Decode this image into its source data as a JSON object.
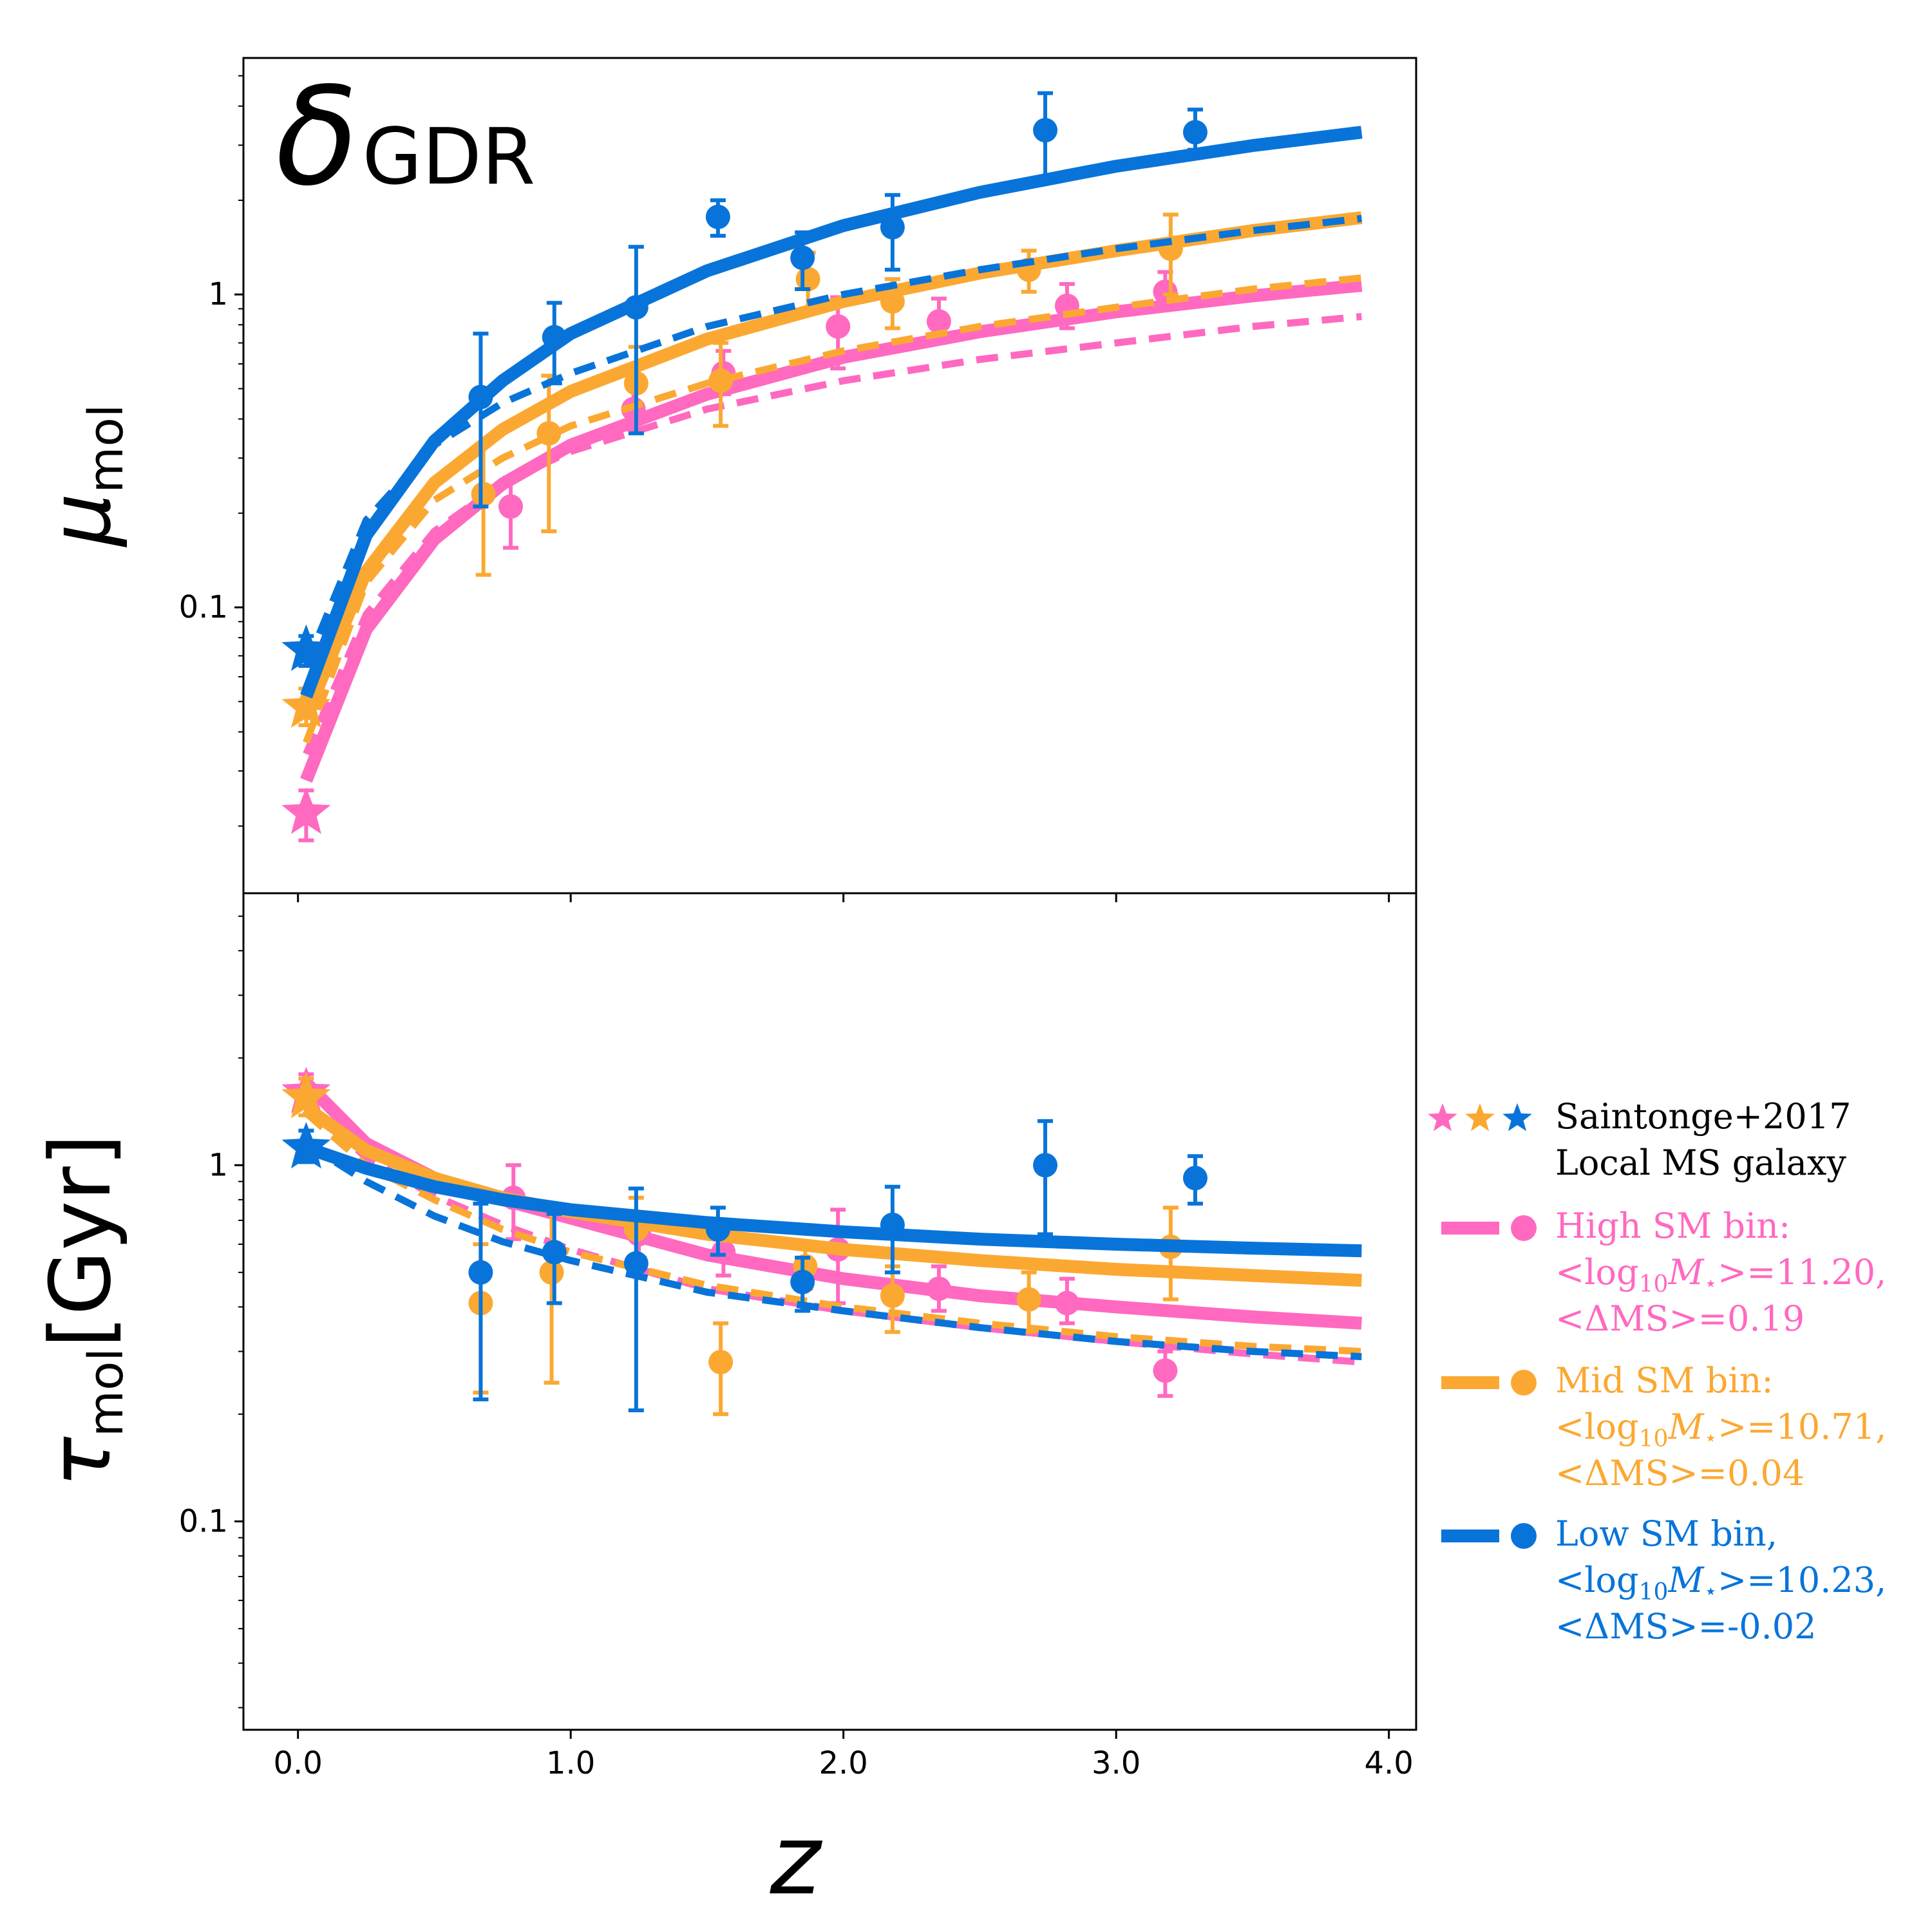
{
  "colors": {
    "high": "#ff69c0",
    "mid": "#fba832",
    "low": "#0874d9",
    "axis": "#000000"
  },
  "chart_data": [
    {
      "type": "scatter",
      "panel": "top",
      "title": "δ",
      "title_sub": "GDR",
      "ylabel": "μ",
      "ylabel_sub": "mol",
      "yscale": "log",
      "ylim": [
        0.0122,
        5.7
      ],
      "xlim": [
        -0.2,
        4.1
      ],
      "yticks": [
        {
          "value": 1,
          "label": "1"
        },
        {
          "value": 0.1,
          "label": "0.1"
        }
      ],
      "xticks": [
        0,
        1,
        2,
        3,
        4
      ],
      "series": [
        {
          "name": "High SM bin",
          "color_key": "high",
          "stars": [
            {
              "x": 0.03,
              "y": 0.022,
              "err_lo": 0.018,
              "err_hi": 0.026
            }
          ],
          "points": [
            {
              "x": 0.78,
              "y": 0.21,
              "err_lo": 0.155,
              "err_hi": 0.26
            },
            {
              "x": 1.23,
              "y": 0.43,
              "err_lo": 0.37,
              "err_hi": 0.5
            },
            {
              "x": 1.56,
              "y": 0.56,
              "err_lo": 0.48,
              "err_hi": 0.66
            },
            {
              "x": 1.98,
              "y": 0.79,
              "err_lo": 0.58,
              "err_hi": 0.98
            },
            {
              "x": 2.35,
              "y": 0.82,
              "err_lo": 0.7,
              "err_hi": 0.97
            },
            {
              "x": 2.82,
              "y": 0.92,
              "err_lo": 0.78,
              "err_hi": 1.08
            },
            {
              "x": 3.18,
              "y": 1.02,
              "err_lo": 0.9,
              "err_hi": 1.18
            }
          ],
          "solid": {
            "x": [
              0.03,
              0.25,
              0.5,
              0.75,
              1.0,
              1.5,
              2.0,
              2.5,
              3.0,
              3.5,
              3.9
            ],
            "y": [
              0.028,
              0.085,
              0.165,
              0.248,
              0.33,
              0.48,
              0.63,
              0.76,
              0.88,
              0.99,
              1.07
            ]
          },
          "dashed": {
            "x": [
              0.03,
              0.25,
              0.5,
              0.75,
              1.0,
              1.5,
              2.0,
              2.5,
              3.0,
              3.5,
              3.9
            ],
            "y": [
              0.034,
              0.095,
              0.175,
              0.25,
              0.315,
              0.43,
              0.53,
              0.62,
              0.7,
              0.79,
              0.85
            ]
          }
        },
        {
          "name": "Mid SM bin",
          "color_key": "mid",
          "stars": [
            {
              "x": 0.03,
              "y": 0.048,
              "err_lo": 0.042,
              "err_hi": 0.055
            }
          ],
          "points": [
            {
              "x": 0.68,
              "y": 0.23,
              "err_lo": 0.127,
              "err_hi": 0.33
            },
            {
              "x": 0.92,
              "y": 0.36,
              "err_lo": 0.175,
              "err_hi": 0.55
            },
            {
              "x": 1.24,
              "y": 0.52,
              "err_lo": 0.36,
              "err_hi": 0.68
            },
            {
              "x": 1.55,
              "y": 0.53,
              "err_lo": 0.38,
              "err_hi": 0.7
            },
            {
              "x": 1.87,
              "y": 1.12,
              "err_lo": 0.88,
              "err_hi": 1.36
            },
            {
              "x": 2.18,
              "y": 0.95,
              "err_lo": 0.78,
              "err_hi": 1.12
            },
            {
              "x": 2.68,
              "y": 1.2,
              "err_lo": 1.02,
              "err_hi": 1.38
            },
            {
              "x": 3.2,
              "y": 1.4,
              "err_lo": 1.0,
              "err_hi": 1.8
            }
          ],
          "solid": {
            "x": [
              0.03,
              0.25,
              0.5,
              0.75,
              1.0,
              1.5,
              2.0,
              2.5,
              3.0,
              3.5,
              3.9
            ],
            "y": [
              0.045,
              0.13,
              0.25,
              0.37,
              0.49,
              0.72,
              0.95,
              1.17,
              1.38,
              1.6,
              1.76
            ]
          },
          "dashed": {
            "x": [
              0.03,
              0.25,
              0.5,
              0.75,
              1.0,
              1.5,
              2.0,
              2.5,
              3.0,
              3.5,
              3.9
            ],
            "y": [
              0.037,
              0.12,
              0.22,
              0.3,
              0.38,
              0.52,
              0.66,
              0.79,
              0.91,
              1.04,
              1.13
            ]
          }
        },
        {
          "name": "Low SM bin",
          "color_key": "low",
          "stars": [
            {
              "x": 0.03,
              "y": 0.073,
              "err_lo": 0.065,
              "err_hi": 0.081
            }
          ],
          "points": [
            {
              "x": 0.67,
              "y": 0.47,
              "err_lo": 0.21,
              "err_hi": 0.75
            },
            {
              "x": 0.94,
              "y": 0.73,
              "err_lo": 0.52,
              "err_hi": 0.94
            },
            {
              "x": 1.24,
              "y": 0.91,
              "err_lo": 0.36,
              "err_hi": 1.42
            },
            {
              "x": 1.54,
              "y": 1.77,
              "err_lo": 1.54,
              "err_hi": 2.0
            },
            {
              "x": 1.85,
              "y": 1.31,
              "err_lo": 1.04,
              "err_hi": 1.58
            },
            {
              "x": 2.18,
              "y": 1.64,
              "err_lo": 1.2,
              "err_hi": 2.08
            },
            {
              "x": 2.74,
              "y": 3.35,
              "err_lo": 2.3,
              "err_hi": 4.4
            },
            {
              "x": 3.29,
              "y": 3.3,
              "err_lo": 2.9,
              "err_hi": 3.9
            }
          ],
          "solid": {
            "x": [
              0.03,
              0.25,
              0.5,
              0.75,
              1.0,
              1.5,
              2.0,
              2.5,
              3.0,
              3.5,
              3.9
            ],
            "y": [
              0.052,
              0.17,
              0.34,
              0.53,
              0.75,
              1.19,
              1.66,
              2.12,
              2.57,
              2.99,
              3.3
            ]
          },
          "dashed": {
            "x": [
              0.03,
              0.25,
              0.5,
              0.75,
              1.0,
              1.5,
              2.0,
              2.5,
              3.0,
              3.5,
              3.9
            ],
            "y": [
              0.065,
              0.19,
              0.33,
              0.45,
              0.56,
              0.79,
              1.0,
              1.2,
              1.4,
              1.6,
              1.75
            ]
          }
        }
      ]
    },
    {
      "type": "scatter",
      "panel": "bottom",
      "xlabel": "z",
      "ylabel": "τ",
      "ylabel_sub": "mol",
      "ylabel_unit": "[Gyr]",
      "yscale": "log",
      "ylim": [
        0.026,
        5.8
      ],
      "xlim": [
        -0.2,
        4.1
      ],
      "yticks": [
        {
          "value": 1,
          "label": "1"
        },
        {
          "value": 0.1,
          "label": "0.1"
        }
      ],
      "xticks": [
        {
          "value": 0,
          "label": "0.0"
        },
        {
          "value": 1,
          "label": "1.0"
        },
        {
          "value": 2,
          "label": "2.0"
        },
        {
          "value": 3,
          "label": "3.0"
        },
        {
          "value": 4,
          "label": "4.0"
        }
      ],
      "series": [
        {
          "name": "High SM bin",
          "color_key": "high",
          "stars": [
            {
              "x": 0.03,
              "y": 1.6,
              "err_lo": 1.45,
              "err_hi": 1.8
            }
          ],
          "points": [
            {
              "x": 0.79,
              "y": 0.81,
              "err_lo": 0.62,
              "err_hi": 1.0
            },
            {
              "x": 1.25,
              "y": 0.64,
              "err_lo": 0.55,
              "err_hi": 0.73
            },
            {
              "x": 1.56,
              "y": 0.57,
              "err_lo": 0.49,
              "err_hi": 0.65
            },
            {
              "x": 1.98,
              "y": 0.58,
              "err_lo": 0.41,
              "err_hi": 0.75
            },
            {
              "x": 2.35,
              "y": 0.45,
              "err_lo": 0.39,
              "err_hi": 0.52
            },
            {
              "x": 2.82,
              "y": 0.41,
              "err_lo": 0.36,
              "err_hi": 0.48
            },
            {
              "x": 3.18,
              "y": 0.265,
              "err_lo": 0.225,
              "err_hi": 0.3
            }
          ],
          "solid": {
            "x": [
              0.03,
              0.25,
              0.5,
              0.75,
              1.0,
              1.5,
              2.0,
              2.5,
              3.0,
              3.5,
              3.9
            ],
            "y": [
              1.7,
              1.15,
              0.92,
              0.8,
              0.71,
              0.56,
              0.48,
              0.43,
              0.4,
              0.375,
              0.36
            ]
          },
          "dashed": {
            "x": [
              0.03,
              0.25,
              0.5,
              0.75,
              1.0,
              1.5,
              2.0,
              2.5,
              3.0,
              3.5,
              3.9
            ],
            "y": [
              1.5,
              1.05,
              0.82,
              0.68,
              0.58,
              0.45,
              0.39,
              0.35,
              0.32,
              0.295,
              0.28
            ]
          }
        },
        {
          "name": "Mid SM bin",
          "color_key": "mid",
          "stars": [
            {
              "x": 0.03,
              "y": 1.55,
              "err_lo": 1.38,
              "err_hi": 1.75
            }
          ],
          "points": [
            {
              "x": 0.67,
              "y": 0.41,
              "err_lo": 0.23,
              "err_hi": 0.6
            },
            {
              "x": 0.93,
              "y": 0.5,
              "err_lo": 0.245,
              "err_hi": 0.75
            },
            {
              "x": 1.24,
              "y": 0.66,
              "err_lo": 0.51,
              "err_hi": 0.81
            },
            {
              "x": 1.55,
              "y": 0.28,
              "err_lo": 0.2,
              "err_hi": 0.36
            },
            {
              "x": 1.86,
              "y": 0.52,
              "err_lo": 0.45,
              "err_hi": 0.6
            },
            {
              "x": 2.18,
              "y": 0.43,
              "err_lo": 0.34,
              "err_hi": 0.52
            },
            {
              "x": 2.68,
              "y": 0.42,
              "err_lo": 0.34,
              "err_hi": 0.5
            },
            {
              "x": 3.2,
              "y": 0.59,
              "err_lo": 0.42,
              "err_hi": 0.76
            }
          ],
          "solid": {
            "x": [
              0.03,
              0.25,
              0.5,
              0.75,
              1.0,
              1.5,
              2.0,
              2.5,
              3.0,
              3.5,
              3.9
            ],
            "y": [
              1.45,
              1.1,
              0.92,
              0.81,
              0.74,
              0.64,
              0.58,
              0.54,
              0.51,
              0.49,
              0.475
            ]
          },
          "dashed": {
            "x": [
              0.03,
              0.25,
              0.5,
              0.75,
              1.0,
              1.5,
              2.0,
              2.5,
              3.0,
              3.5,
              3.9
            ],
            "y": [
              1.4,
              1.0,
              0.8,
              0.66,
              0.57,
              0.46,
              0.4,
              0.36,
              0.33,
              0.31,
              0.3
            ]
          }
        },
        {
          "name": "Low SM bin",
          "color_key": "low",
          "stars": [
            {
              "x": 0.03,
              "y": 1.12,
              "err_lo": 1.02,
              "err_hi": 1.25
            }
          ],
          "points": [
            {
              "x": 0.67,
              "y": 0.5,
              "err_lo": 0.22,
              "err_hi": 0.78
            },
            {
              "x": 0.94,
              "y": 0.57,
              "err_lo": 0.41,
              "err_hi": 0.73
            },
            {
              "x": 1.24,
              "y": 0.53,
              "err_lo": 0.205,
              "err_hi": 0.86
            },
            {
              "x": 1.54,
              "y": 0.66,
              "err_lo": 0.56,
              "err_hi": 0.76
            },
            {
              "x": 1.85,
              "y": 0.47,
              "err_lo": 0.39,
              "err_hi": 0.55
            },
            {
              "x": 2.18,
              "y": 0.68,
              "err_lo": 0.5,
              "err_hi": 0.87
            },
            {
              "x": 2.74,
              "y": 1.0,
              "err_lo": 0.64,
              "err_hi": 1.33
            },
            {
              "x": 3.29,
              "y": 0.92,
              "err_lo": 0.78,
              "err_hi": 1.06
            }
          ],
          "solid": {
            "x": [
              0.03,
              0.25,
              0.5,
              0.75,
              1.0,
              1.5,
              2.0,
              2.5,
              3.0,
              3.5,
              3.9
            ],
            "y": [
              1.12,
              0.98,
              0.87,
              0.8,
              0.75,
              0.69,
              0.65,
              0.62,
              0.6,
              0.585,
              0.575
            ]
          },
          "dashed": {
            "x": [
              0.03,
              0.25,
              0.5,
              0.75,
              1.0,
              1.5,
              2.0,
              2.5,
              3.0,
              3.5,
              3.9
            ],
            "y": [
              1.15,
              0.9,
              0.72,
              0.61,
              0.54,
              0.44,
              0.39,
              0.35,
              0.32,
              0.3,
              0.29
            ]
          }
        }
      ]
    }
  ],
  "legend": {
    "stars_title": "Saintonge+2017",
    "stars_subtitle": "Local MS galaxy",
    "entries": [
      {
        "color_key": "high",
        "line1": "High SM bin:",
        "line2_pre": "<log",
        "line2_sub": "10",
        "line2_mid": "M",
        "line2_star": "⋆",
        "line2_post": ">=11.20,",
        "line3": "<ΔMS>=0.19"
      },
      {
        "color_key": "mid",
        "line1": "Mid SM bin:",
        "line2_pre": "<log",
        "line2_sub": "10",
        "line2_mid": "M",
        "line2_star": "⋆",
        "line2_post": ">=10.71,",
        "line3": "<ΔMS>=0.04"
      },
      {
        "color_key": "low",
        "line1": "Low SM bin,",
        "line2_pre": "<log",
        "line2_sub": "10",
        "line2_mid": "M",
        "line2_star": "⋆",
        "line2_post": ">=10.23,",
        "line3": "<ΔMS>=-0.02"
      }
    ]
  }
}
